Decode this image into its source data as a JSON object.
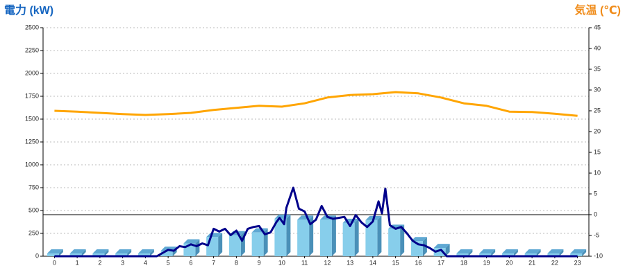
{
  "chart_data": {
    "type": "combo",
    "y_label": "電力 (kW)",
    "y2_label": "気温 (℃)",
    "categories": [
      "0",
      "1",
      "2",
      "3",
      "4",
      "5",
      "6",
      "7",
      "8",
      "9",
      "10",
      "11",
      "12",
      "13",
      "14",
      "15",
      "16",
      "17",
      "18",
      "19",
      "20",
      "21",
      "22",
      "23"
    ],
    "ylim": [
      0,
      2500
    ],
    "yticks": [
      0,
      250,
      500,
      750,
      1000,
      1250,
      1500,
      1750,
      2000,
      2250,
      2500
    ],
    "y2lim": [
      -10,
      45
    ],
    "y2ticks": [
      -10,
      -5,
      0,
      5,
      10,
      15,
      20,
      25,
      30,
      35,
      40,
      45
    ],
    "y2_reference_line": 0,
    "grid": true,
    "series": [
      {
        "type": "bar",
        "color": "#87ceeb",
        "values": [
          30,
          30,
          30,
          30,
          30,
          60,
          140,
          210,
          230,
          260,
          410,
          400,
          400,
          365,
          395,
          300,
          165,
          90,
          30,
          30,
          30,
          30,
          30,
          30
        ]
      },
      {
        "type": "line",
        "color": "#00008b",
        "x": [
          0,
          4.5,
          5,
          5.25,
          5.5,
          5.75,
          6,
          6.25,
          6.5,
          6.75,
          7,
          7.25,
          7.5,
          7.75,
          8,
          8.25,
          8.5,
          8.75,
          9,
          9.25,
          9.5,
          9.75,
          9.9,
          10.1,
          10.2,
          10.5,
          10.75,
          11,
          11.25,
          11.5,
          11.75,
          12,
          12.25,
          12.5,
          12.75,
          13,
          13.25,
          13.5,
          13.75,
          14,
          14.25,
          14.4,
          14.55,
          14.75,
          15,
          15.25,
          15.5,
          15.75,
          16,
          16.25,
          16.5,
          16.75,
          17,
          17.25,
          23
        ],
        "values": [
          0,
          0,
          70,
          60,
          110,
          100,
          130,
          110,
          140,
          120,
          300,
          270,
          300,
          230,
          280,
          170,
          300,
          320,
          330,
          240,
          260,
          370,
          420,
          350,
          530,
          750,
          520,
          490,
          350,
          400,
          550,
          430,
          410,
          420,
          430,
          330,
          450,
          370,
          320,
          380,
          600,
          470,
          740,
          340,
          300,
          320,
          250,
          170,
          130,
          120,
          90,
          50,
          70,
          0,
          0
        ]
      },
      {
        "type": "line",
        "color": "#ffa500",
        "axis": "y2",
        "values": [
          25,
          24.8,
          24.5,
          24.2,
          24,
          24.2,
          24.5,
          25.2,
          25.7,
          26.2,
          26,
          26.8,
          28.2,
          28.8,
          29,
          29.5,
          29.2,
          28.2,
          26.8,
          26.2,
          24.8,
          24.7,
          24.3,
          23.8
        ]
      }
    ]
  }
}
